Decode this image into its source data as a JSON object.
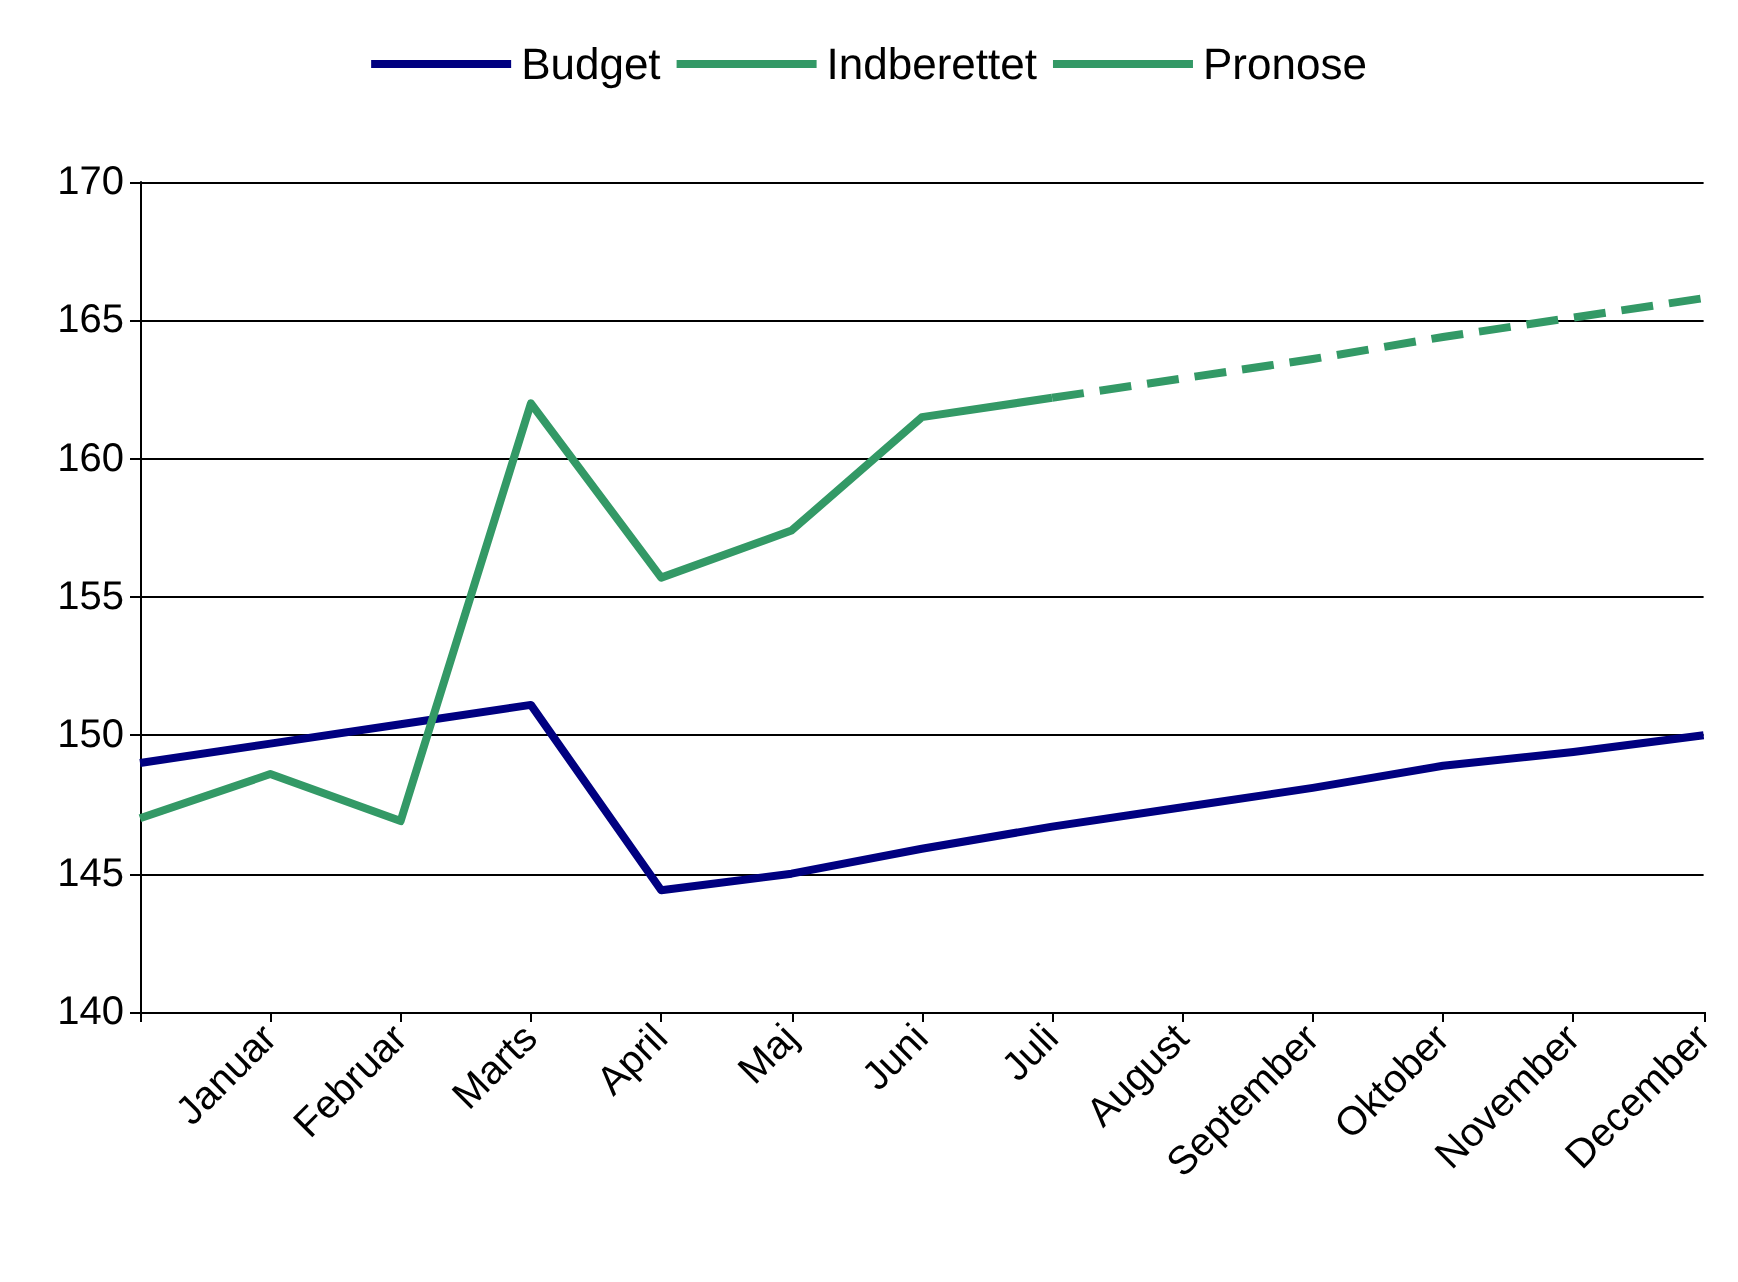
{
  "chart_data": {
    "type": "line",
    "categories": [
      null,
      "Januar",
      "Februar",
      "Marts",
      "April",
      "Maj",
      "Juni",
      "Juli",
      "August",
      "September",
      "Oktober",
      "November",
      "December"
    ],
    "series": [
      {
        "name": "Budget",
        "color": "#000080",
        "values": [
          149,
          149.7,
          150.4,
          151.1,
          144.4,
          145,
          145.9,
          146.7,
          147.4,
          148.1,
          148.9,
          149.4,
          150
        ]
      },
      {
        "name": "Indberettet",
        "color": "#339966",
        "values": [
          147,
          148.6,
          146.9,
          162,
          155.7,
          157.4,
          161.5,
          162.2,
          null,
          null,
          null,
          null,
          null
        ]
      },
      {
        "name": "Pronose",
        "color": "#339966",
        "line_style": "dashed",
        "values": [
          null,
          null,
          null,
          null,
          null,
          null,
          null,
          162.2,
          162.9,
          163.6,
          164.4,
          165.1,
          165.8
        ]
      }
    ],
    "ylim": [
      140,
      170
    ],
    "yticks": [
      140,
      145,
      150,
      155,
      160,
      165,
      170
    ],
    "grid": "y",
    "legend": "top",
    "marker": "none",
    "line_style": "solid"
  }
}
